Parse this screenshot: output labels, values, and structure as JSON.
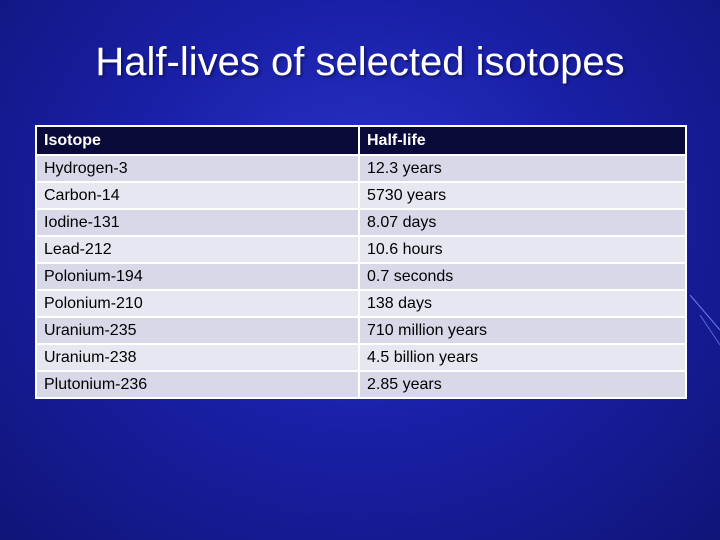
{
  "title": "Half-lives of selected isotopes",
  "table": {
    "headers": [
      "Isotope",
      "Half-life"
    ],
    "rows": [
      [
        "Hydrogen-3",
        "12.3 years"
      ],
      [
        "Carbon-14",
        "5730 years"
      ],
      [
        "Iodine-131",
        "8.07 days"
      ],
      [
        "Lead-212",
        "10.6 hours"
      ],
      [
        "Polonium-194",
        "0.7 seconds"
      ],
      [
        "Polonium-210",
        "138 days"
      ],
      [
        "Uranium-235",
        "710 million years"
      ],
      [
        "Uranium-238",
        "4.5 billion years"
      ],
      [
        "Plutonium-236",
        "2.85 years"
      ]
    ]
  },
  "colors": {
    "background": "#1a20a8",
    "header_row": "#0a0a3a",
    "body_row": "#d7d9e8",
    "border": "#ffffff"
  }
}
